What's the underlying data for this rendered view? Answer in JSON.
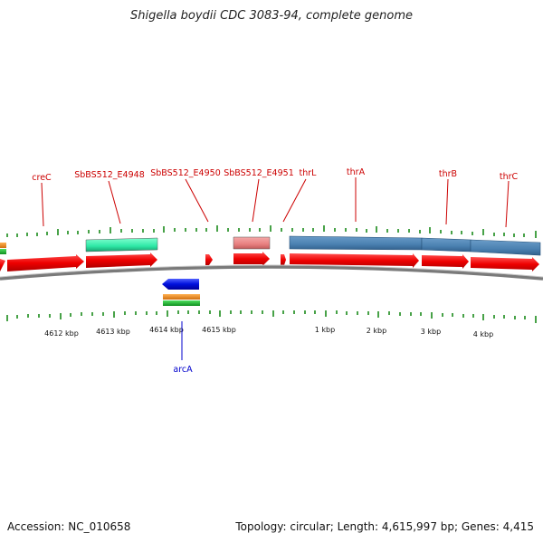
{
  "title": "Shigella boydii CDC 3083-94, complete genome",
  "footer": {
    "accession": "Accession: NC_010658",
    "summary": "Topology: circular; Length: 4,615,997 bp; Genes: 4,415"
  },
  "colors": {
    "cds_forward": "#ee0000",
    "cds_reverse": "#0000dd",
    "label_top": "#cc0000",
    "label_bottom": "#0000cc",
    "tick": "#1a8a1a",
    "backbone": "#777777",
    "feature_teal": "#2ee8a6",
    "feature_pink": "#e88080",
    "feature_steel": "#4a80b0",
    "feature_orange": "#f08c1a",
    "feature_green": "#20b030"
  },
  "gene_labels_top": [
    "creC",
    "SbBS512_E4948",
    "SbBS512_E4950",
    "SbBS512_E4951",
    "thrL",
    "thrA",
    "thrB",
    "thrC"
  ],
  "gene_labels_bottom": [
    "arcA"
  ],
  "scale_labels": [
    "4612 kbp",
    "4613 kbp",
    "4614 kbp",
    "4615 kbp",
    "1 kbp",
    "2 kbp",
    "3 kbp",
    "4 kbp"
  ]
}
